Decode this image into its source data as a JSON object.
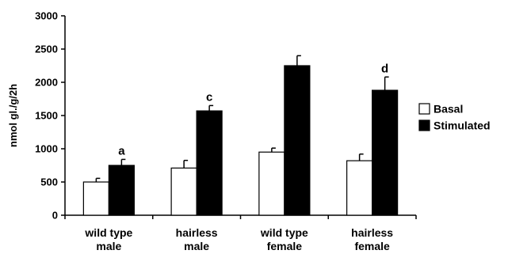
{
  "chart_data": {
    "type": "bar",
    "ylabel": "nmol gl./g/2h",
    "xlabel": "",
    "ylim": [
      0,
      3000
    ],
    "yticks": [
      0,
      500,
      1000,
      1500,
      2000,
      2500,
      3000
    ],
    "categories": [
      [
        "wild type",
        "male"
      ],
      [
        "hairless",
        "male"
      ],
      [
        "wild type",
        "female"
      ],
      [
        "hairless",
        "female"
      ]
    ],
    "series": [
      {
        "name": "Basal",
        "color": "#ffffff",
        "values": [
          500,
          710,
          950,
          820
        ],
        "errors": [
          55,
          115,
          60,
          100
        ]
      },
      {
        "name": "Stimulated",
        "color": "#000000",
        "values": [
          750,
          1570,
          2250,
          1880
        ],
        "errors": [
          90,
          80,
          150,
          200
        ]
      }
    ],
    "annotations": [
      {
        "category_index": 0,
        "series": "Stimulated",
        "text": "a"
      },
      {
        "category_index": 1,
        "series": "Stimulated",
        "text": "c"
      },
      {
        "category_index": 3,
        "series": "Stimulated",
        "text": "d"
      }
    ],
    "legend": {
      "placement": "right",
      "entries": [
        "Basal",
        "Stimulated"
      ]
    },
    "grid": false
  }
}
